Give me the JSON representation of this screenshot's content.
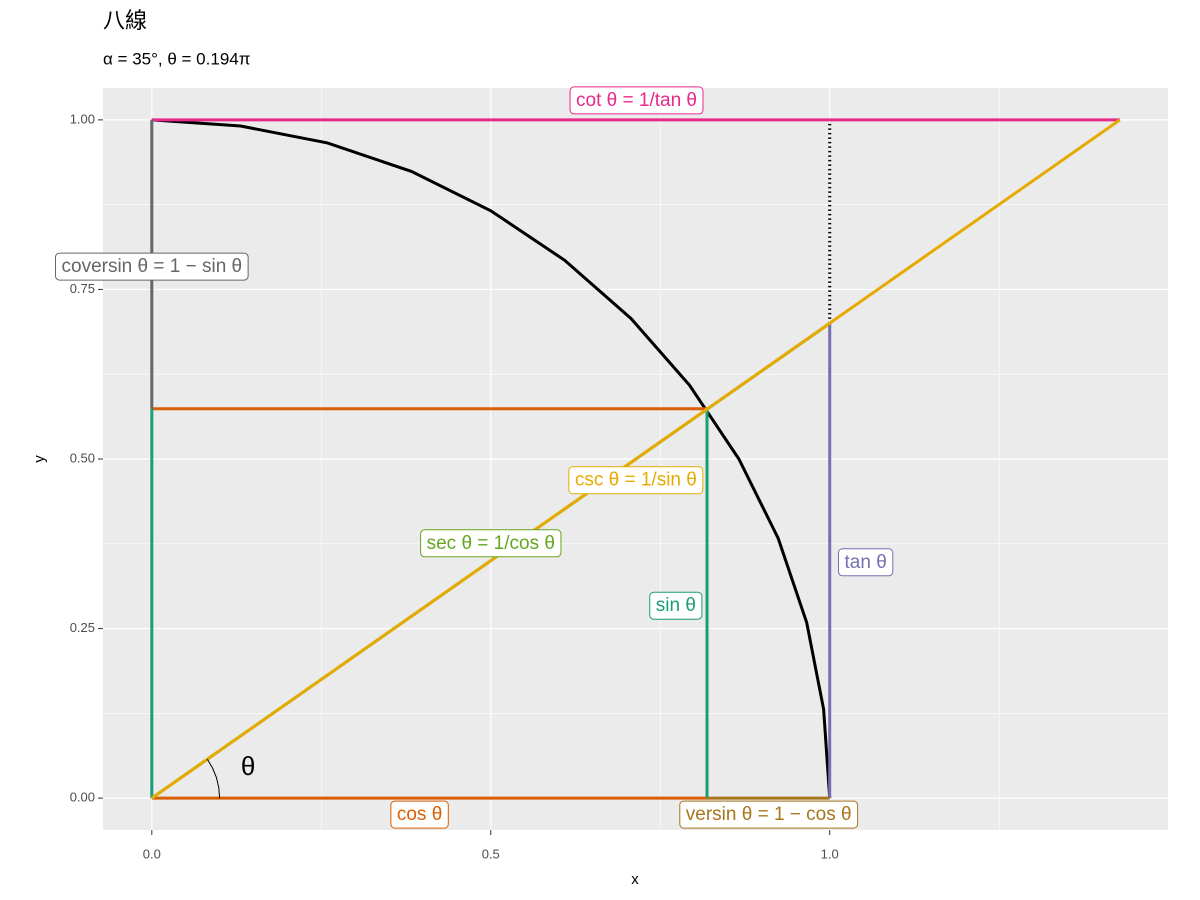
{
  "chart_data": {
    "type": "line",
    "title": "八線",
    "subtitle": "α = 35°, θ = 0.194π",
    "x_label": "x",
    "y_label": "y",
    "xlim": [
      -0.072,
      1.499
    ],
    "ylim": [
      -0.047,
      1.047
    ],
    "xticks": [
      {
        "value": 0,
        "label": "0.0"
      },
      {
        "value": 0.5,
        "label": "0.5"
      },
      {
        "value": 1,
        "label": "1.0"
      }
    ],
    "yticks": [
      {
        "value": 0,
        "label": "0.00"
      },
      {
        "value": 0.25,
        "label": "0.25"
      },
      {
        "value": 0.5,
        "label": "0.50"
      },
      {
        "value": 0.75,
        "label": "0.75"
      },
      {
        "value": 1,
        "label": "1.00"
      }
    ],
    "xminor": [
      0.25,
      0.75,
      1.25
    ],
    "yminor": [
      0.125,
      0.375,
      0.625,
      0.875
    ],
    "grid": true,
    "series": [
      {
        "color": "#000000",
        "x": [
          0,
          0.131,
          0.259,
          0.383,
          0.5,
          0.609,
          0.707,
          0.793,
          0.866,
          0.924,
          0.966,
          0.991,
          1
        ],
        "values": [
          1,
          0.991,
          0.966,
          0.924,
          0.866,
          0.793,
          0.707,
          0.609,
          0.5,
          0.383,
          0.259,
          0.131,
          0
        ]
      },
      {
        "color": "#000000",
        "dash": "dotted",
        "x": [
          1,
          1
        ],
        "values": [
          0.7,
          1
        ]
      },
      {
        "name": "cos θ",
        "color": "#D95F02",
        "x": [
          0,
          0.819,
          null,
          0,
          0.819
        ],
        "values": [
          0,
          0,
          null,
          0.574,
          0.574
        ]
      },
      {
        "name": "sin θ",
        "color": "#1B9E77",
        "x": [
          0.819,
          0.819,
          null,
          0,
          0
        ],
        "values": [
          0,
          0.574,
          null,
          0,
          0.574
        ]
      },
      {
        "name": "tan θ",
        "color": "#7570B3",
        "x": [
          1,
          1
        ],
        "values": [
          0,
          0.7
        ]
      },
      {
        "name": "cot θ = 1/tan θ",
        "color": "#E7298A",
        "x": [
          0,
          1.428
        ],
        "values": [
          1,
          1
        ]
      },
      {
        "name": "coversin θ = 1 − sin θ",
        "color": "#666666",
        "x": [
          0,
          0
        ],
        "values": [
          0.574,
          1
        ]
      },
      {
        "name": "versin θ = 1 − cos θ",
        "color": "#A6761D",
        "x": [
          0.819,
          1
        ],
        "values": [
          0,
          0
        ]
      },
      {
        "name": "sec θ = 1/cos θ",
        "color": "#66A61E",
        "x": [
          0,
          1
        ],
        "values": [
          0,
          0.7
        ]
      },
      {
        "name": "csc θ = 1/sin θ",
        "color": "#E6AB02",
        "x": [
          0,
          1.428
        ],
        "values": [
          0,
          1
        ]
      },
      {
        "color": "#000000",
        "width": 1,
        "x": [
          0.1,
          0.0988,
          0.0954,
          0.0897,
          0.0819
        ],
        "values": [
          0,
          0.0152,
          0.0301,
          0.0442,
          0.0574
        ]
      }
    ],
    "annotations": [
      {
        "text": "cot θ = 1/tan θ",
        "x": 0.715,
        "y": 1.028,
        "color": "#E7298A",
        "box": true
      },
      {
        "text": "coversin θ = 1 − sin θ",
        "x": 0,
        "y": 0.783,
        "color": "#666666",
        "box": true
      },
      {
        "text": "csc θ = 1/sin θ",
        "x": 0.714,
        "y": 0.468,
        "color": "#E6AB02",
        "box": true
      },
      {
        "text": "sec θ = 1/cos θ",
        "x": 0.5,
        "y": 0.375,
        "color": "#66A61E",
        "box": true
      },
      {
        "text": "sin θ",
        "x": 0.773,
        "y": 0.283,
        "color": "#1B9E77",
        "box": true
      },
      {
        "text": "tan θ",
        "x": 1.053,
        "y": 0.347,
        "color": "#7570B3",
        "box": true
      },
      {
        "text": "cos θ",
        "x": 0.395,
        "y": -0.025,
        "color": "#D95F02",
        "box": true
      },
      {
        "text": "versin θ = 1 − cos θ",
        "x": 0.91,
        "y": -0.025,
        "color": "#A6761D",
        "box": true
      },
      {
        "text": "θ",
        "x": 0.142,
        "y": 0.044,
        "color": "#000000",
        "box": false
      }
    ]
  }
}
